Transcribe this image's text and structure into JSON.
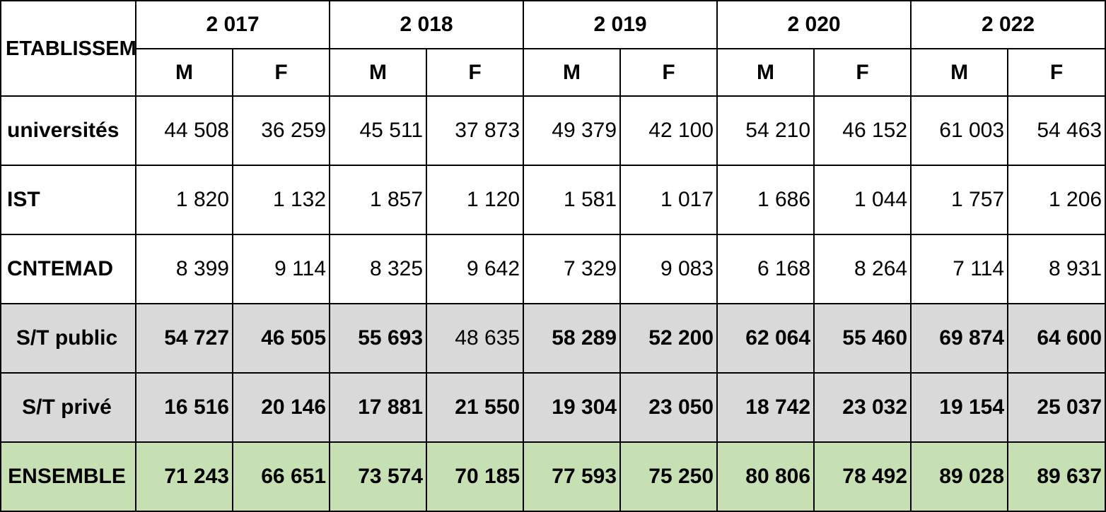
{
  "header": {
    "establishment_label": "ETABLISSEMENT",
    "years": [
      "2 017",
      "2 018",
      "2 019",
      "2 020",
      "2 022"
    ],
    "sex_labels": [
      "M",
      "F"
    ]
  },
  "rows": [
    {
      "label": "universités",
      "values": [
        "44 508",
        "36 259",
        "45 511",
        "37 873",
        "49 379",
        "42 100",
        "54 210",
        "46 152",
        "61 003",
        "54 463"
      ]
    },
    {
      "label": "IST",
      "values": [
        "1 820",
        "1 132",
        "1 857",
        "1 120",
        "1 581",
        "1 017",
        "1 686",
        "1 044",
        "1 757",
        "1 206"
      ]
    },
    {
      "label": "CNTEMAD",
      "values": [
        "8 399",
        "9 114",
        "8 325",
        "9 642",
        "7 329",
        "9 083",
        "6 168",
        "8 264",
        "7 114",
        "8 931"
      ]
    },
    {
      "label": "S/T public",
      "values": [
        "54 727",
        "46 505",
        "55 693",
        "48 635",
        "58 289",
        "52 200",
        "62 064",
        "55 460",
        "69 874",
        "64 600"
      ]
    },
    {
      "label": "S/T privé",
      "values": [
        "16 516",
        "20 146",
        "17 881",
        "21 550",
        "19 304",
        "23 050",
        "18 742",
        "23 032",
        "19 154",
        "25 037"
      ]
    },
    {
      "label": "ENSEMBLE",
      "values": [
        "71 243",
        "66 651",
        "73 574",
        "70 185",
        "77 593",
        "75 250",
        "80 806",
        "78 492",
        "89 028",
        "89 637"
      ]
    }
  ],
  "colors": {
    "subtotal_bg": "#d9d9d9",
    "total_bg": "#c6e0b4",
    "border": "#000000"
  }
}
